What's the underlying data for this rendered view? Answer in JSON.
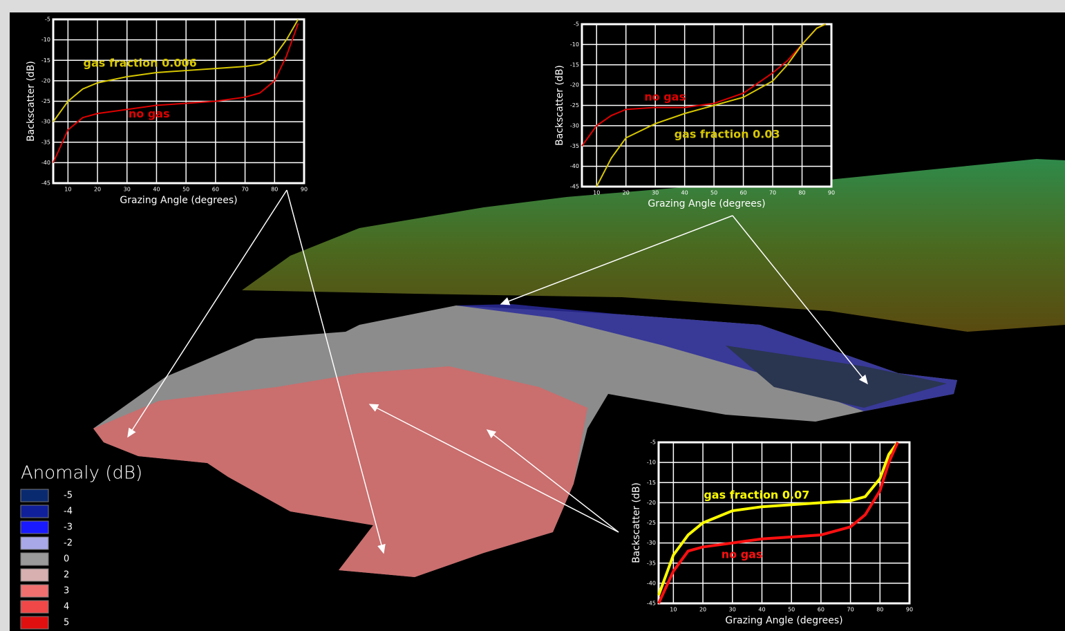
{
  "charts": [
    {
      "type": "line",
      "ylabel": "Backscatter (dB)",
      "xlabel": "Grazing Angle (degrees)",
      "x": [
        5,
        10,
        15,
        20,
        30,
        40,
        50,
        60,
        70,
        75,
        80,
        84,
        88
      ],
      "series": [
        {
          "name": "gas fraction 0.006",
          "color": "#d8c800",
          "values": [
            -30,
            -25,
            -22,
            -20.5,
            -19,
            -18,
            -17.5,
            -17,
            -16.5,
            -16,
            -14,
            -10,
            -5
          ]
        },
        {
          "name": "no gas",
          "color": "#e00000",
          "values": [
            -40,
            -32,
            -29,
            -28,
            -27,
            -26,
            -25.5,
            -25,
            -24,
            -23,
            -20,
            -14,
            -6
          ]
        }
      ],
      "xlim": [
        5,
        90
      ],
      "xticks": [
        10,
        20,
        30,
        40,
        50,
        60,
        70,
        80,
        90
      ],
      "ylim": [
        -45,
        -5
      ],
      "yticks": [
        -5,
        -10,
        -15,
        -20,
        -25,
        -30,
        -35,
        -40,
        -45
      ],
      "grid": true
    },
    {
      "type": "line",
      "ylabel": "Backscatter (dB)",
      "xlabel": "Grazing Angle (degrees)",
      "x": [
        5,
        10,
        15,
        20,
        30,
        40,
        50,
        60,
        70,
        75,
        80,
        85,
        88
      ],
      "series": [
        {
          "name": "no gas",
          "color": "#e00000",
          "values": [
            -35,
            -30,
            -27.5,
            -26,
            -25.5,
            -25.5,
            -24.5,
            -22,
            -17,
            -14,
            -10,
            -6,
            -5
          ]
        },
        {
          "name": "gas fraction 0.03",
          "color": "#d8c800",
          "values": [
            null,
            -45,
            -38,
            -33,
            -29.5,
            -27,
            -25,
            -23,
            -19,
            -15,
            -10,
            -6,
            -5
          ]
        }
      ],
      "xlim": [
        5,
        90
      ],
      "xticks": [
        10,
        20,
        30,
        40,
        50,
        60,
        70,
        80,
        90
      ],
      "ylim": [
        -45,
        -5
      ],
      "yticks": [
        -5,
        -10,
        -15,
        -20,
        -25,
        -30,
        -35,
        -40,
        -45
      ],
      "grid": true
    },
    {
      "type": "line",
      "ylabel": "Backscatter (dB)",
      "xlabel": "Grazing Angle (degrees)",
      "x": [
        5,
        10,
        15,
        20,
        30,
        40,
        50,
        60,
        70,
        75,
        80,
        83,
        86
      ],
      "series": [
        {
          "name": "gas fraction 0.07",
          "color": "#ffff00",
          "values": [
            -43,
            -33,
            -28,
            -25,
            -22,
            -21,
            -20.5,
            -20,
            -19.5,
            -18.5,
            -14,
            -8,
            -5
          ]
        },
        {
          "name": "no gas",
          "color": "#ff1010",
          "values": [
            -45,
            -37,
            -32,
            -31,
            -30,
            -29,
            -28.5,
            -28,
            -26,
            -23,
            -17,
            -10,
            -5
          ]
        }
      ],
      "xlim": [
        5,
        90
      ],
      "xticks": [
        10,
        20,
        30,
        40,
        50,
        60,
        70,
        80,
        90
      ],
      "ylim": [
        -45,
        -5
      ],
      "yticks": [
        -5,
        -10,
        -15,
        -20,
        -25,
        -30,
        -35,
        -40,
        -45
      ],
      "grid": true
    }
  ],
  "legend": {
    "title": "Anomaly (dB)",
    "values": [
      -5,
      -4,
      -3,
      -2,
      0,
      2,
      3,
      4,
      5
    ],
    "colors": [
      "#0a2a70",
      "#10209a",
      "#1a1aff",
      "#a8a8e8",
      "#9a9a9a",
      "#d8b0b0",
      "#f07070",
      "#f04848",
      "#e01010"
    ]
  }
}
